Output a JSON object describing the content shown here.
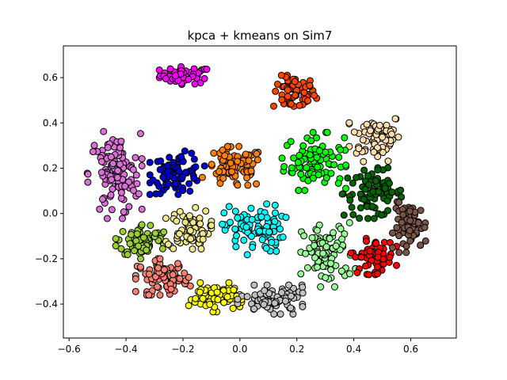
{
  "chart_data": {
    "type": "scatter",
    "title": "kpca + kmeans on Sim7",
    "xlabel": "",
    "ylabel": "",
    "xlim": [
      -0.62,
      0.76
    ],
    "ylim": [
      -0.55,
      0.74
    ],
    "xticks": [
      -0.6,
      -0.4,
      -0.2,
      0.0,
      0.2,
      0.4,
      0.6
    ],
    "xtick_labels": [
      "−0.6",
      "−0.4",
      "−0.2",
      "0.0",
      "0.2",
      "0.4",
      "0.6"
    ],
    "yticks": [
      -0.4,
      -0.2,
      0.0,
      0.2,
      0.4,
      0.6
    ],
    "ytick_labels": [
      "−0.4",
      "−0.2",
      "0.0",
      "0.2",
      "0.4",
      "0.6"
    ],
    "grid": false,
    "legend": "none",
    "marker_edge_color": "#000000",
    "clusters": [
      {
        "color": "#ff00ff",
        "center": [
          -0.19,
          0.61
        ],
        "spread": [
          0.06,
          0.025
        ],
        "n": 55
      },
      {
        "color": "#ff4500",
        "center": [
          0.19,
          0.53
        ],
        "spread": [
          0.05,
          0.05
        ],
        "n": 60
      },
      {
        "color": "#ffdead",
        "center": [
          0.48,
          0.34
        ],
        "spread": [
          0.06,
          0.07
        ],
        "n": 70
      },
      {
        "color": "#00ff00",
        "center": [
          0.26,
          0.23
        ],
        "spread": [
          0.07,
          0.08
        ],
        "n": 90
      },
      {
        "color": "#006400",
        "center": [
          0.47,
          0.09
        ],
        "spread": [
          0.07,
          0.07
        ],
        "n": 85
      },
      {
        "color": "#ff7f0e",
        "center": [
          -0.02,
          0.2
        ],
        "spread": [
          0.07,
          0.06
        ],
        "n": 80
      },
      {
        "color": "#0000cd",
        "center": [
          -0.22,
          0.18
        ],
        "spread": [
          0.06,
          0.06
        ],
        "n": 80
      },
      {
        "color": "#da70d6",
        "center": [
          -0.44,
          0.17
        ],
        "spread": [
          0.06,
          0.12
        ],
        "n": 110
      },
      {
        "color": "#9acd32",
        "center": [
          -0.34,
          -0.12
        ],
        "spread": [
          0.06,
          0.05
        ],
        "n": 70
      },
      {
        "color": "#f0e68c",
        "center": [
          -0.18,
          -0.07
        ],
        "spread": [
          0.05,
          0.06
        ],
        "n": 70
      },
      {
        "color": "#00ffff",
        "center": [
          0.05,
          -0.07
        ],
        "spread": [
          0.07,
          0.07
        ],
        "n": 90
      },
      {
        "color": "#98fb98",
        "center": [
          0.31,
          -0.18
        ],
        "spread": [
          0.06,
          0.09
        ],
        "n": 85
      },
      {
        "color": "#ff0000",
        "center": [
          0.47,
          -0.19
        ],
        "spread": [
          0.05,
          0.05
        ],
        "n": 65
      },
      {
        "color": "#795548",
        "center": [
          0.6,
          -0.06
        ],
        "spread": [
          0.04,
          0.07
        ],
        "n": 65
      },
      {
        "color": "#fa8072",
        "center": [
          -0.27,
          -0.28
        ],
        "spread": [
          0.06,
          0.05
        ],
        "n": 75
      },
      {
        "color": "#ffff00",
        "center": [
          -0.09,
          -0.37
        ],
        "spread": [
          0.06,
          0.04
        ],
        "n": 75
      },
      {
        "color": "#c0c0c0",
        "center": [
          0.12,
          -0.38
        ],
        "spread": [
          0.08,
          0.04
        ],
        "n": 90
      }
    ]
  }
}
